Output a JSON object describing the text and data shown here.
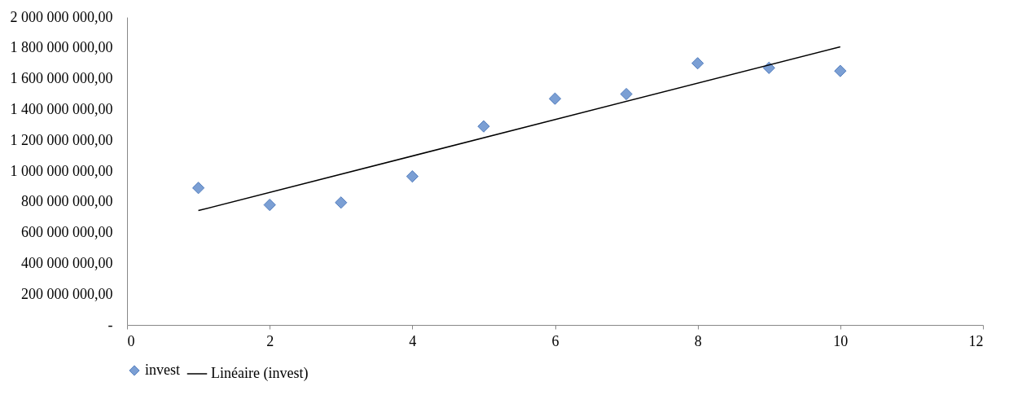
{
  "chart_data": {
    "type": "scatter",
    "x": [
      1,
      2,
      3,
      4,
      5,
      6,
      7,
      8,
      9,
      10
    ],
    "series": [
      {
        "name": "invest",
        "color": "#7b9fd4",
        "marker": "diamond",
        "values": [
          890000000,
          780000000,
          795000000,
          965000000,
          1290000000,
          1470000000,
          1500000000,
          1700000000,
          1670000000,
          1650000000
        ]
      },
      {
        "name": "Linéaire (invest)",
        "type": "line",
        "color": "#000000",
        "x": [
          1,
          10
        ],
        "values": [
          743000000,
          1807000000
        ]
      }
    ],
    "xlim": [
      0,
      12
    ],
    "xticks": [
      0,
      2,
      4,
      6,
      8,
      10,
      12
    ],
    "ylim": [
      0,
      2000000000
    ],
    "yticks": [
      {
        "value": 0,
        "label": "-"
      },
      {
        "value": 200000000,
        "label": "200 000 000,00"
      },
      {
        "value": 400000000,
        "label": "400 000 000,00"
      },
      {
        "value": 600000000,
        "label": "600 000 000,00"
      },
      {
        "value": 800000000,
        "label": "800 000 000,00"
      },
      {
        "value": 1000000000,
        "label": "1 000 000 000,00"
      },
      {
        "value": 1200000000,
        "label": "1 200 000 000,00"
      },
      {
        "value": 1400000000,
        "label": "1 400 000 000,00"
      },
      {
        "value": 1600000000,
        "label": "1 600 000 000,00"
      },
      {
        "value": 1800000000,
        "label": "1 800 000 000,00"
      },
      {
        "value": 2000000000,
        "label": "2 000 000 000,00"
      }
    ],
    "grid": false,
    "legend": "bottom"
  }
}
